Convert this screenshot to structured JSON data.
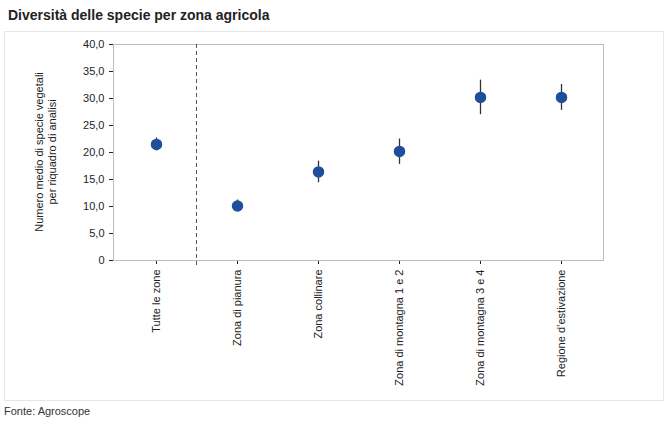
{
  "chart_data": {
    "type": "scatter",
    "title": "Diversità delle specie per zona agricola",
    "y_label": "Numero medio di specie vegetali per riquadro di analisi",
    "source": "Fonte: Agroscope",
    "categories": [
      "Tutte le zone",
      "Zona di pianura",
      "Zona collinare",
      "Zona di montagna 1 e 2",
      "Zona di montagna 3 e 4",
      "Regione d’estivazione"
    ],
    "values": [
      21.5,
      10.1,
      16.4,
      20.2,
      30.2,
      30.2
    ],
    "error_low": [
      20.3,
      9.2,
      14.4,
      17.8,
      27.0,
      27.8
    ],
    "error_high": [
      22.7,
      11.2,
      18.4,
      22.5,
      33.4,
      32.6
    ],
    "color": "#1f4e9a",
    "marker": "circle",
    "ylim": [
      0,
      40
    ],
    "yticks": [
      0,
      {
        "value": 5,
        "label": "5,0"
      },
      {
        "value": 10,
        "label": "10,0"
      },
      {
        "value": 15,
        "label": "15,0"
      },
      {
        "value": 20,
        "label": "20,0"
      },
      {
        "value": 25,
        "label": "25,0"
      },
      {
        "value": 30,
        "label": "30,0"
      },
      {
        "value": 35,
        "label": "35,0"
      },
      {
        "value": 40,
        "label": "40,0"
      }
    ],
    "grid": false
  }
}
